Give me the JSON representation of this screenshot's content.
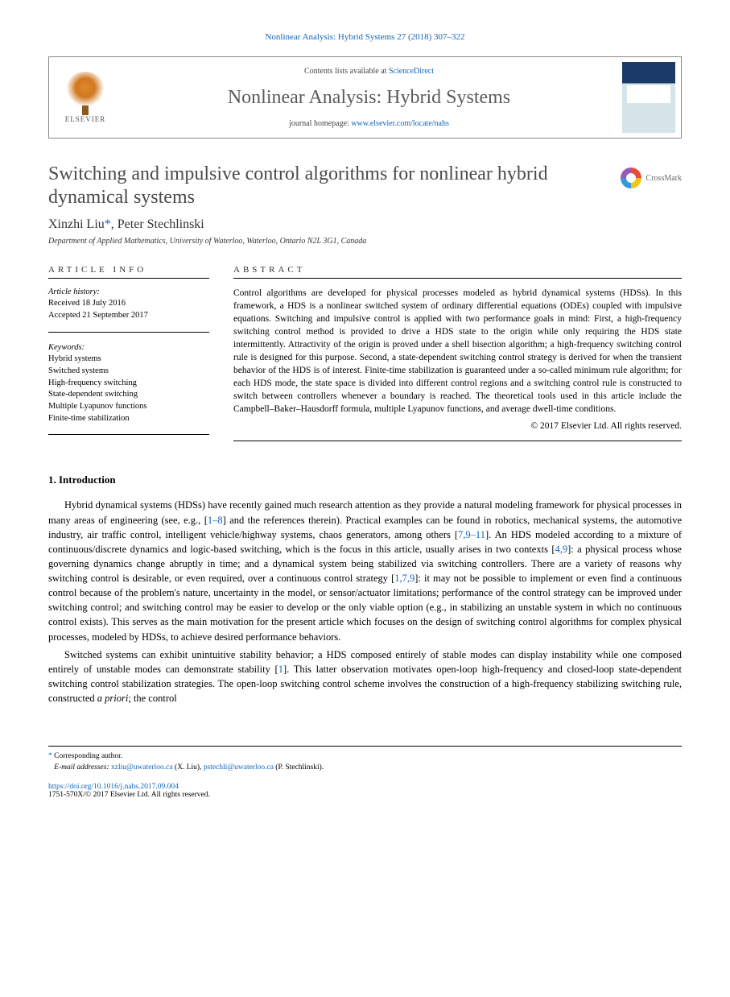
{
  "journal_ref": "Nonlinear Analysis: Hybrid Systems 27 (2018) 307–322",
  "header": {
    "elsevier_label": "ELSEVIER",
    "contents_prefix": "Contents lists available at ",
    "contents_link": "ScienceDirect",
    "journal_name": "Nonlinear Analysis: Hybrid Systems",
    "homepage_prefix": "journal homepage: ",
    "homepage_link": "www.elsevier.com/locate/nahs"
  },
  "crossmark_label": "CrossMark",
  "title": "Switching and impulsive control algorithms for nonlinear hybrid dynamical systems",
  "authors": {
    "a1": "Xinzhi Liu",
    "corr_marker": "*",
    "sep": ", ",
    "a2": "Peter Stechlinski"
  },
  "affiliation": "Department of Applied Mathematics, University of Waterloo, Waterloo, Ontario N2L 3G1, Canada",
  "info": {
    "head": "ARTICLE INFO",
    "history_label": "Article history:",
    "received": "Received 18 July 2016",
    "accepted": "Accepted 21 September 2017",
    "keywords_label": "Keywords:",
    "k1": "Hybrid systems",
    "k2": "Switched systems",
    "k3": "High-frequency switching",
    "k4": "State-dependent switching",
    "k5": "Multiple Lyapunov functions",
    "k6": "Finite-time stabilization"
  },
  "abstract": {
    "head": "ABSTRACT",
    "text": "Control algorithms are developed for physical processes modeled as hybrid dynamical systems (HDSs). In this framework, a HDS is a nonlinear switched system of ordinary differential equations (ODEs) coupled with impulsive equations. Switching and impulsive control is applied with two performance goals in mind: First, a high-frequency switching control method is provided to drive a HDS state to the origin while only requiring the HDS state intermittently. Attractivity of the origin is proved under a shell bisection algorithm; a high-frequency switching control rule is designed for this purpose. Second, a state-dependent switching control strategy is derived for when the transient behavior of the HDS is of interest. Finite-time stabilization is guaranteed under a so-called minimum rule algorithm; for each HDS mode, the state space is divided into different control regions and a switching control rule is constructed to switch between controllers whenever a boundary is reached. The theoretical tools used in this article include the Campbell–Baker–Hausdorff formula, multiple Lyapunov functions, and average dwell-time conditions.",
    "copyright": "© 2017 Elsevier Ltd. All rights reserved."
  },
  "section1": {
    "heading": "1.  Introduction",
    "p1a": "Hybrid dynamical systems (HDSs) have recently gained much research attention as they provide a natural modeling framework for physical processes in many areas of engineering (see, e.g., [",
    "p1r1": "1–8",
    "p1b": "] and the references therein). Practical examples can be found in robotics, mechanical systems, the automotive industry, air traffic control, intelligent vehicle/highway systems, chaos generators, among others [",
    "p1r2": "7,9–11",
    "p1c": "]. An HDS modeled according to a mixture of continuous/discrete dynamics and logic-based switching, which is the focus in this article, usually arises in two contexts [",
    "p1r3": "4,9",
    "p1d": "]: a physical process whose governing dynamics change abruptly in time; and a dynamical system being stabilized via switching controllers. There are a variety of reasons why switching control is desirable, or even required, over a continuous control strategy [",
    "p1r4": "1,7,9",
    "p1e": "]: it may not be possible to implement or even find a continuous control because of the problem's nature, uncertainty in the model, or sensor/actuator limitations; performance of the control strategy can be improved under switching control; and switching control may be easier to develop or the only viable option (e.g., in stabilizing an unstable system in which no continuous control exists). This serves as the main motivation for the present article which focuses on the design of switching control algorithms for complex physical processes, modeled by HDSs, to achieve desired performance behaviors.",
    "p2a": "Switched systems can exhibit unintuitive stability behavior; a HDS composed entirely of stable modes can display instability while one composed entirely of unstable modes can demonstrate stability [",
    "p2r1": "1",
    "p2b": "]. This latter observation motivates open-loop high-frequency and closed-loop state-dependent switching control stabilization strategies. The open-loop switching control scheme involves the construction of a high-frequency stabilizing switching rule, constructed ",
    "p2em": "a priori",
    "p2c": "; the control"
  },
  "footnotes": {
    "corr": "Corresponding author.",
    "email_label": "E-mail addresses:",
    "email1": "xzliu@uwaterloo.ca",
    "email1_who": " (X. Liu), ",
    "email2": "pstechli@uwaterloo.ca",
    "email2_who": " (P. Stechlinski)."
  },
  "footer": {
    "doi": "https://doi.org/10.1016/j.nahs.2017.09.004",
    "issn_line": "1751-570X/© 2017 Elsevier Ltd. All rights reserved."
  },
  "colors": {
    "link": "#1066bb",
    "title_gray": "#4a4a4a"
  }
}
